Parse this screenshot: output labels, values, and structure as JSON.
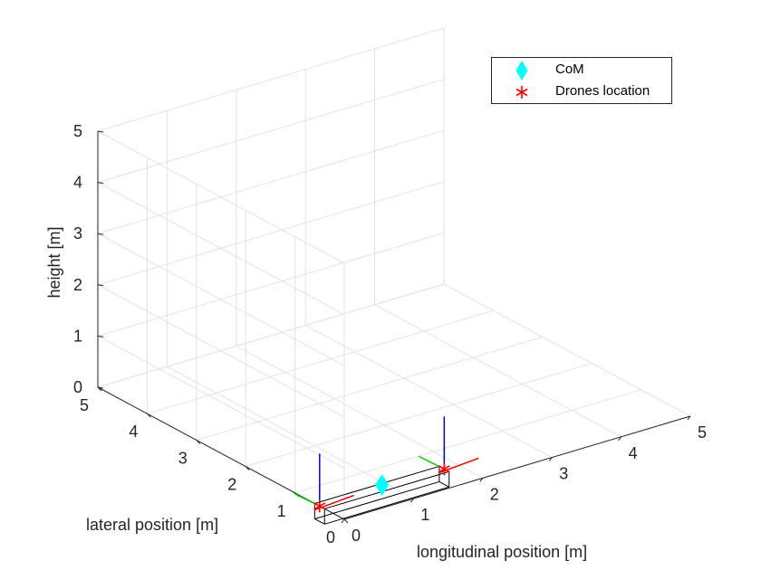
{
  "chart_data": {
    "type": "scatter3d",
    "xlabel": "longitudinal position [m]",
    "ylabel": "lateral position [m]",
    "zlabel": "height [m]",
    "xlim": [
      0,
      5
    ],
    "ylim": [
      0,
      5
    ],
    "zlim": [
      0,
      5
    ],
    "x_ticks": [
      "0",
      "1",
      "2",
      "3",
      "4",
      "5"
    ],
    "y_ticks": [
      "0",
      "1",
      "2",
      "3",
      "4",
      "5"
    ],
    "z_ticks": [
      "0",
      "1",
      "2",
      "3",
      "4",
      "5"
    ],
    "grid": true,
    "legend_position": "top-right",
    "series": [
      {
        "name": "CoM",
        "marker": "diamond",
        "color": "#00ffff",
        "points": [
          {
            "x": 0.9,
            "y": 0.5,
            "z": 0.05
          }
        ]
      },
      {
        "name": "Drones location",
        "marker": "asterisk",
        "color": "#ff0000",
        "points": [
          {
            "x": 0.0,
            "y": 0.5,
            "z": 0.0
          },
          {
            "x": 1.8,
            "y": 0.5,
            "z": 0.0
          }
        ]
      }
    ],
    "payload_box": {
      "x": [
        0,
        1.8
      ],
      "y": [
        0.4,
        0.6
      ],
      "z": [
        -0.3,
        0.0
      ],
      "color": "#000000"
    },
    "drone_frames": [
      {
        "origin": {
          "x": 0.0,
          "y": 0.5,
          "z": 0.0
        },
        "x_axis_color": "#ff0000",
        "y_axis_color": "#00cc00",
        "z_axis_color": "#0000ff"
      },
      {
        "origin": {
          "x": 1.8,
          "y": 0.5,
          "z": 0.0
        },
        "x_axis_color": "#ff0000",
        "y_axis_color": "#00cc00",
        "z_axis_color": "#0000ff"
      }
    ]
  }
}
